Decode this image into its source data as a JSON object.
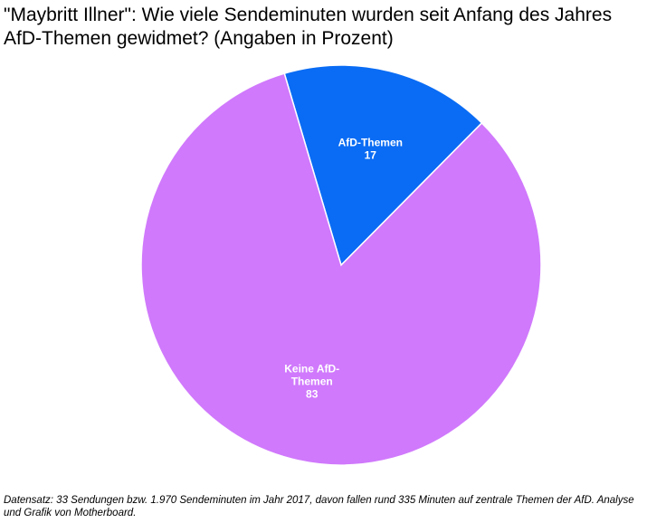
{
  "chart_data": {
    "type": "pie",
    "title_lines": [
      "\"Maybritt Illner\": Wie viele Sendeminuten wurden seit Anfang des Jahres",
      "AfD-Themen gewidmet? (Angaben in Prozent)"
    ],
    "slices": [
      {
        "label": "AfD-Themen",
        "label_lines": [
          "AfD-Themen"
        ],
        "value": 17,
        "color": "#0a6cf4"
      },
      {
        "label": "Keine AfD-Themen",
        "label_lines": [
          "Keine AfD-",
          "Themen"
        ],
        "value": 83,
        "color": "#d079fc"
      }
    ],
    "footnote_lines": [
      "Datensatz: 33 Sendungen bzw. 1.970 Sendeminuten im Jahr 2017, davon fallen rund 335 Minuten auf zentrale Themen der AfD. Analyse",
      "und Grafik von Motherboard."
    ]
  }
}
